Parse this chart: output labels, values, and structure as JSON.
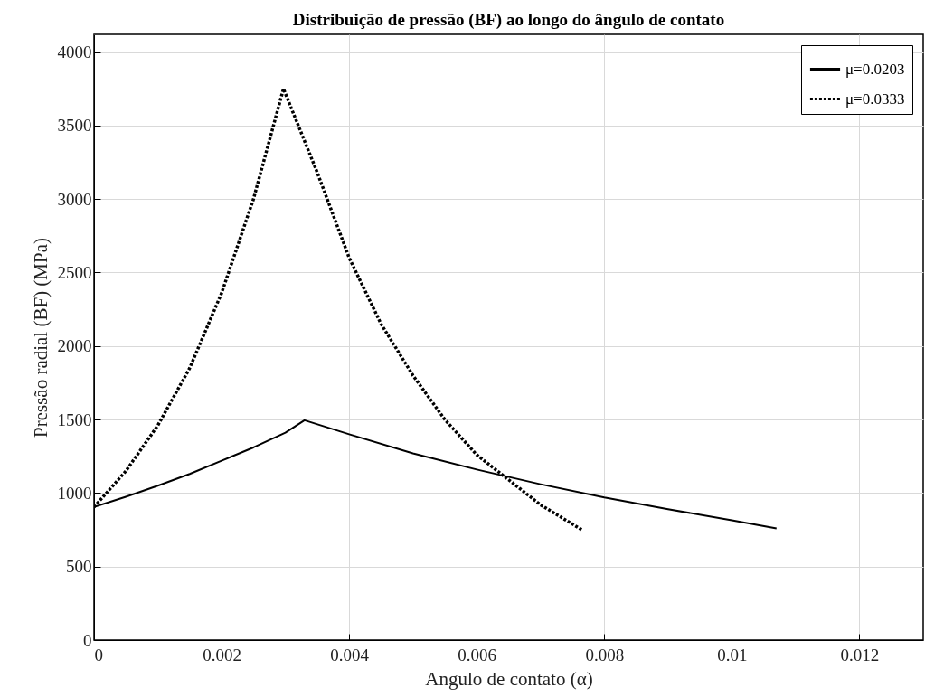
{
  "chart_data": {
    "type": "line",
    "title": "Distribuição de pressão (BF) ao longo do ângulo de contato",
    "xlabel": "Angulo de contato (α)",
    "ylabel": "Pressão radial (BF) (MPa)",
    "xlim": [
      0,
      0.013
    ],
    "xticks": [
      0,
      0.002,
      0.004,
      0.006,
      0.008,
      0.01,
      0.012
    ],
    "ylim": [
      0,
      4120
    ],
    "yticks": [
      0,
      500,
      1000,
      1500,
      2000,
      2500,
      3000,
      3500,
      4000
    ],
    "grid": true,
    "legend": "top right",
    "series": [
      {
        "name": "μ=0.0203",
        "color": "#000000",
        "line_style": "solid",
        "x": [
          0,
          0.0005,
          0.001,
          0.0015,
          0.002,
          0.0025,
          0.003,
          0.0033,
          0.004,
          0.005,
          0.006,
          0.007,
          0.008,
          0.009,
          0.01,
          0.0107
        ],
        "values": [
          905,
          975,
          1050,
          1130,
          1220,
          1310,
          1410,
          1495,
          1400,
          1270,
          1160,
          1060,
          970,
          890,
          815,
          760
        ]
      },
      {
        "name": "μ=0.0333",
        "color": "#000000",
        "line_style": "dashed",
        "x": [
          0,
          0.0005,
          0.001,
          0.0015,
          0.002,
          0.0025,
          0.00297,
          0.0035,
          0.004,
          0.0045,
          0.005,
          0.0055,
          0.006,
          0.0065,
          0.007,
          0.00765
        ],
        "values": [
          905,
          1150,
          1460,
          1850,
          2360,
          3000,
          3750,
          3180,
          2600,
          2150,
          1800,
          1500,
          1260,
          1090,
          920,
          750
        ]
      }
    ]
  }
}
